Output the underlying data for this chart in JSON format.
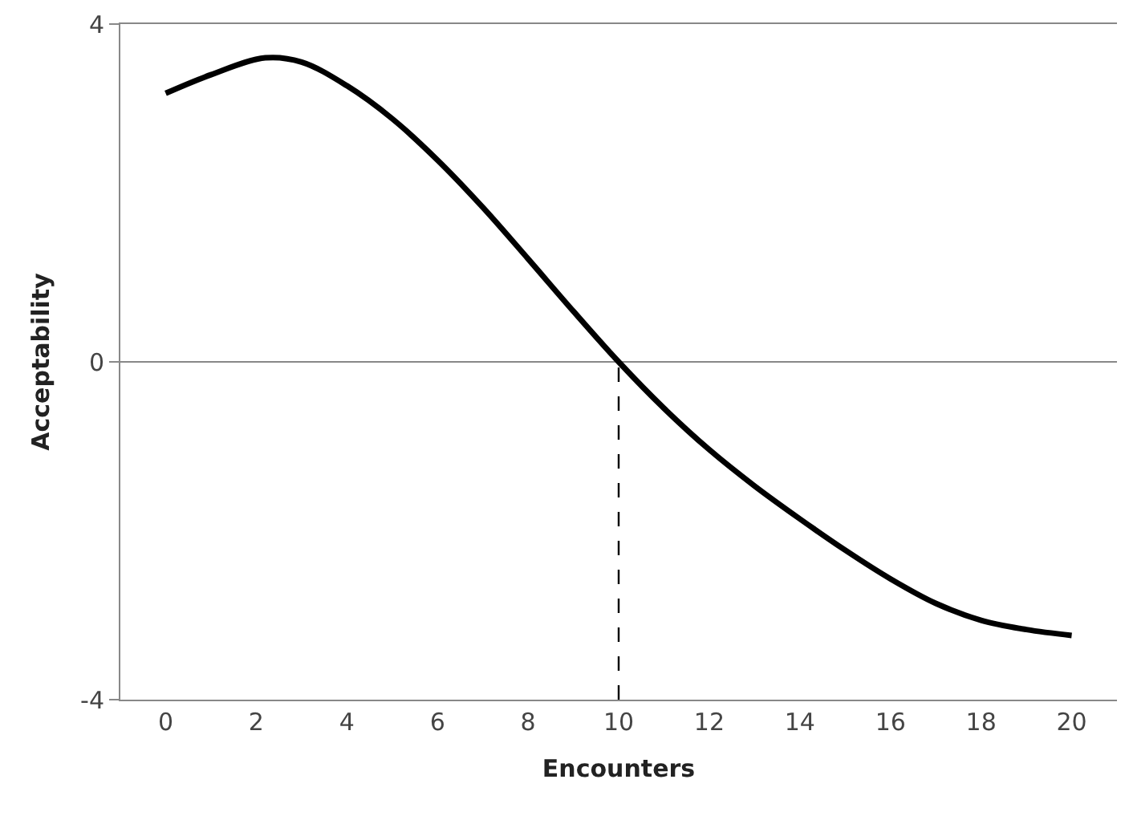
{
  "chart_data": {
    "type": "line",
    "xlabel": "Encounters",
    "ylabel": "Acceptability",
    "x": [
      0,
      1,
      2.2,
      3,
      4,
      5,
      6,
      7,
      8,
      9,
      10,
      11,
      12,
      13,
      14,
      15,
      16,
      17,
      18,
      19,
      20
    ],
    "series": [
      {
        "color": "#000000",
        "values": [
          3.18,
          3.4,
          3.6,
          3.55,
          3.27,
          2.88,
          2.39,
          1.83,
          1.22,
          0.6,
          0,
          -0.55,
          -1.04,
          -1.47,
          -1.86,
          -2.23,
          -2.57,
          -2.86,
          -3.06,
          -3.17,
          -3.24
        ]
      },
      {
        "color": "#000000",
        "x": [
          10,
          10
        ],
        "values": [
          -4,
          0
        ],
        "line_style": "dashed"
      }
    ],
    "xlim": [
      -1,
      21
    ],
    "xticks": [
      0,
      2,
      4,
      6,
      8,
      10,
      12,
      14,
      16,
      18,
      20
    ],
    "ylim": [
      -4,
      4
    ],
    "yticks": [
      -4,
      0,
      4
    ],
    "grid": "y",
    "marker": "none",
    "line_style": "solid"
  }
}
